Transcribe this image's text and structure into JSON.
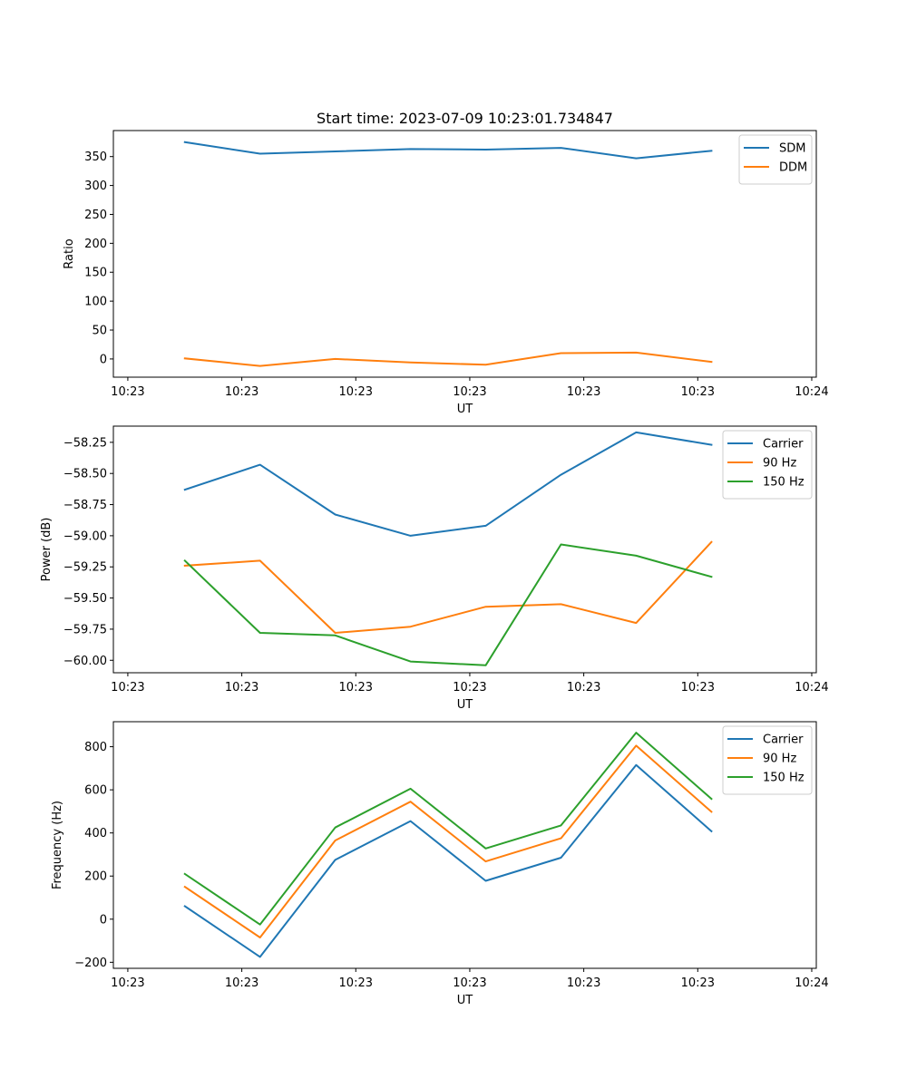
{
  "figure": {
    "title": "Start time: 2023-07-09 10:23:01.734847"
  },
  "colors": {
    "blue": "#1f77b4",
    "orange": "#ff7f0e",
    "green": "#2ca02c"
  },
  "chart_data": [
    {
      "type": "line",
      "title": "Start time: 2023-07-09 10:23:01.734847",
      "xlabel": "UT",
      "ylabel": "Ratio",
      "xlim": [
        -0.19,
        9.06
      ],
      "ylim": [
        -31.5,
        395
      ],
      "x_ticks": [
        0,
        1.5,
        3,
        4.5,
        6,
        7.5,
        9
      ],
      "x_tick_labels": [
        "10:23",
        "10:23",
        "10:23",
        "10:23",
        "10:23",
        "10:23",
        "10:24"
      ],
      "y_ticks": [
        0,
        50,
        100,
        150,
        200,
        250,
        300,
        350
      ],
      "y_tick_labels": [
        "0",
        "50",
        "100",
        "150",
        "200",
        "250",
        "300",
        "350"
      ],
      "x": [
        0.75,
        1.74,
        2.73,
        3.72,
        4.71,
        5.7,
        6.69,
        7.68
      ],
      "legend_position": "top-right",
      "series": [
        {
          "name": "SDM",
          "color": "#1f77b4",
          "values": [
            375,
            355,
            359,
            363,
            362,
            365,
            347,
            360
          ]
        },
        {
          "name": "DDM",
          "color": "#ff7f0e",
          "values": [
            1,
            -12,
            0,
            -6,
            -10,
            10,
            11,
            -5
          ]
        }
      ]
    },
    {
      "type": "line",
      "xlabel": "UT",
      "ylabel": "Power (dB)",
      "xlim": [
        -0.19,
        9.06
      ],
      "ylim": [
        -60.1,
        -58.12
      ],
      "x_ticks": [
        0,
        1.5,
        3,
        4.5,
        6,
        7.5,
        9
      ],
      "x_tick_labels": [
        "10:23",
        "10:23",
        "10:23",
        "10:23",
        "10:23",
        "10:23",
        "10:24"
      ],
      "y_ticks": [
        -60.0,
        -59.75,
        -59.5,
        -59.25,
        -59.0,
        -58.75,
        -58.5,
        -58.25
      ],
      "y_tick_labels": [
        "−60.00",
        "−59.75",
        "−59.50",
        "−59.25",
        "−59.00",
        "−58.75",
        "−58.50",
        "−58.25"
      ],
      "x": [
        0.75,
        1.74,
        2.73,
        3.72,
        4.71,
        5.7,
        6.69,
        7.68
      ],
      "legend_position": "top-right",
      "series": [
        {
          "name": "Carrier",
          "color": "#1f77b4",
          "values": [
            -58.63,
            -58.43,
            -58.83,
            -59.0,
            -58.92,
            -58.51,
            -58.17,
            -58.27
          ]
        },
        {
          "name": "90 Hz",
          "color": "#ff7f0e",
          "values": [
            -59.24,
            -59.2,
            -59.78,
            -59.73,
            -59.57,
            -59.55,
            -59.7,
            -59.05
          ]
        },
        {
          "name": "150 Hz",
          "color": "#2ca02c",
          "values": [
            -59.2,
            -59.78,
            -59.8,
            -60.01,
            -60.04,
            -59.07,
            -59.16,
            -59.33
          ]
        }
      ]
    },
    {
      "type": "line",
      "xlabel": "UT",
      "ylabel": "Frequency (Hz)",
      "xlim": [
        -0.19,
        9.06
      ],
      "ylim": [
        -228,
        916
      ],
      "x_ticks": [
        0,
        1.5,
        3,
        4.5,
        6,
        7.5,
        9
      ],
      "x_tick_labels": [
        "10:23",
        "10:23",
        "10:23",
        "10:23",
        "10:23",
        "10:23",
        "10:24"
      ],
      "y_ticks": [
        -200,
        0,
        200,
        400,
        600,
        800
      ],
      "y_tick_labels": [
        "−200",
        "0",
        "200",
        "400",
        "600",
        "800"
      ],
      "x": [
        0.75,
        1.74,
        2.73,
        3.72,
        4.71,
        5.7,
        6.69,
        7.68
      ],
      "legend_position": "top-right",
      "series": [
        {
          "name": "Carrier",
          "color": "#1f77b4",
          "values": [
            60,
            -175,
            275,
            455,
            178,
            285,
            715,
            408
          ]
        },
        {
          "name": "90 Hz",
          "color": "#ff7f0e",
          "values": [
            150,
            -85,
            365,
            545,
            268,
            375,
            805,
            498
          ]
        },
        {
          "name": "150 Hz",
          "color": "#2ca02c",
          "values": [
            210,
            -25,
            425,
            605,
            328,
            435,
            865,
            558
          ]
        }
      ]
    }
  ]
}
